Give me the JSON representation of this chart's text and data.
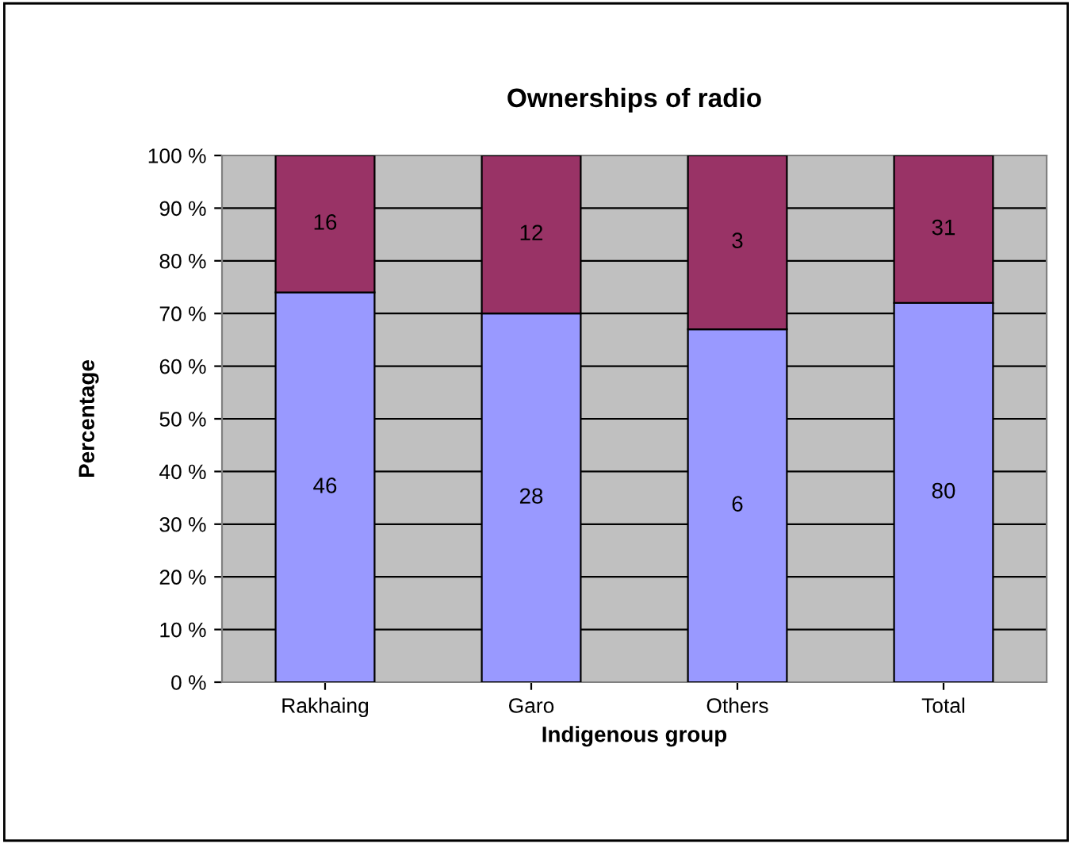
{
  "chart_data": {
    "type": "bar",
    "stacked": true,
    "title": "Ownerships of radio",
    "xlabel": "Indigenous group",
    "ylabel": "Percentage",
    "categories": [
      "Rakhaing",
      "Garo",
      "Others",
      "Total"
    ],
    "series": [
      {
        "color": "#9999ff",
        "values": [
          74,
          70,
          67,
          72
        ]
      },
      {
        "color": "#993366",
        "values": [
          26,
          30,
          33,
          28
        ]
      }
    ],
    "annotations": [
      "46",
      "28",
      "6",
      "80",
      "16",
      "12",
      "3",
      "31"
    ],
    "ylim": [
      0,
      100
    ],
    "yticks": [
      {
        "value": 0,
        "label": "0 %"
      },
      {
        "value": 10,
        "label": "10 %"
      },
      {
        "value": 20,
        "label": "20 %"
      },
      {
        "value": 30,
        "label": "30 %"
      },
      {
        "value": 40,
        "label": "40 %"
      },
      {
        "value": 50,
        "label": "50 %"
      },
      {
        "value": 60,
        "label": "60 %"
      },
      {
        "value": 70,
        "label": "70 %"
      },
      {
        "value": 80,
        "label": "80 %"
      },
      {
        "value": 90,
        "label": "90 %"
      },
      {
        "value": 100,
        "label": "100 %"
      }
    ],
    "grid": "y",
    "legend": false
  }
}
